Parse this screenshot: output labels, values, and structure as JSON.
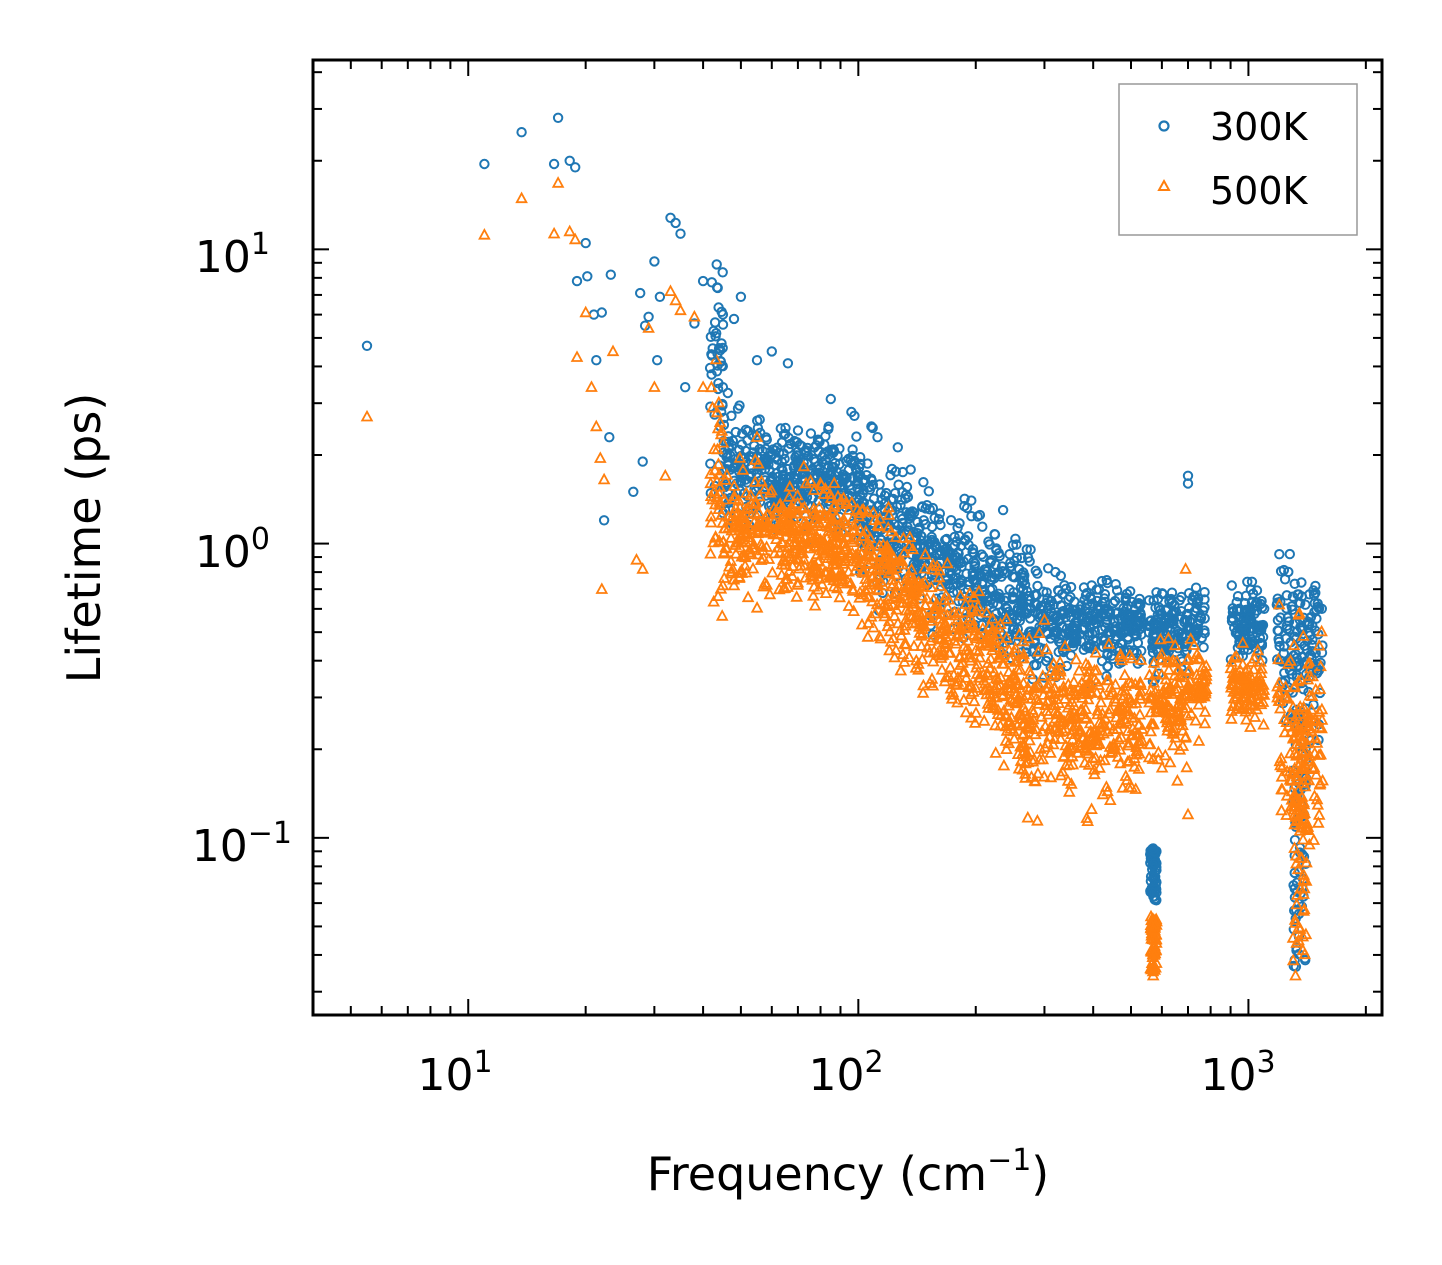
{
  "chart_data": {
    "type": "scatter",
    "title": "",
    "xlabel": "Frequency (cm",
    "xlabel_sup": "−1",
    "xlabel_tail": ")",
    "ylabel": "Lifetime (ps)",
    "xscale": "log",
    "yscale": "log",
    "xlim": [
      4,
      2200
    ],
    "ylim": [
      0.025,
      44
    ],
    "legend_position": "top-right",
    "x_ticks": [
      {
        "value": 10,
        "base": "10",
        "exp": "1"
      },
      {
        "value": 100,
        "base": "10",
        "exp": "2"
      },
      {
        "value": 1000,
        "base": "10",
        "exp": "3"
      }
    ],
    "y_ticks": [
      {
        "value": 0.1,
        "base": "10",
        "exp": "−1"
      },
      {
        "value": 1,
        "base": "10",
        "exp": "0"
      },
      {
        "value": 10,
        "base": "10",
        "exp": "1"
      }
    ],
    "series": [
      {
        "name": "300K",
        "marker": "circle",
        "color": "#1f77b4",
        "sample_points": [
          [
            5.5,
            4.7
          ],
          [
            11,
            19.5
          ],
          [
            13.7,
            25
          ],
          [
            16.6,
            19.5
          ],
          [
            17,
            28
          ],
          [
            18.2,
            20
          ],
          [
            18.8,
            19
          ],
          [
            19,
            7.8
          ],
          [
            20,
            10.5
          ],
          [
            20.2,
            8.1
          ],
          [
            21,
            6
          ],
          [
            21.3,
            4.2
          ],
          [
            22,
            6.1
          ],
          [
            22.3,
            1.2
          ],
          [
            23,
            2.3
          ],
          [
            23.2,
            8.2
          ],
          [
            26.5,
            1.5
          ],
          [
            27.6,
            7.1
          ],
          [
            28,
            1.9
          ],
          [
            28.4,
            5.5
          ],
          [
            29,
            5.9
          ],
          [
            30,
            9.1
          ],
          [
            30.5,
            4.2
          ],
          [
            31,
            6.9
          ],
          [
            33,
            12.8
          ],
          [
            34,
            12.3
          ],
          [
            35,
            11.3
          ],
          [
            36,
            3.4
          ],
          [
            38,
            5.6
          ],
          [
            40,
            7.8
          ],
          [
            42,
            4.4
          ],
          [
            48,
            5.8
          ],
          [
            50,
            6.9
          ],
          [
            55,
            4.2
          ],
          [
            60,
            4.5
          ],
          [
            66,
            4.1
          ],
          [
            85,
            3.1
          ],
          [
            96,
            2.8
          ],
          [
            108,
            2.5
          ],
          [
            112,
            2.3
          ],
          [
            130,
            1.75
          ],
          [
            150,
            1.35
          ],
          [
            205,
            1.25
          ],
          [
            235,
            1.3
          ],
          [
            275,
            0.87
          ],
          [
            320,
            0.8
          ],
          [
            570,
            0.092
          ],
          [
            575,
            0.082
          ],
          [
            700,
            1.7
          ],
          [
            700,
            1.6
          ],
          [
            1200,
            0.92
          ],
          [
            1300,
            0.66
          ],
          [
            1400,
            0.62
          ],
          [
            1500,
            0.37
          ]
        ]
      },
      {
        "name": "500K",
        "marker": "triangle",
        "color": "#ff7f0e",
        "sample_points": [
          [
            5.5,
            2.7
          ],
          [
            11,
            11.2
          ],
          [
            13.7,
            14.9
          ],
          [
            16.6,
            11.3
          ],
          [
            17,
            16.8
          ],
          [
            18.2,
            11.5
          ],
          [
            18.8,
            10.8
          ],
          [
            19,
            4.3
          ],
          [
            20,
            6.1
          ],
          [
            20.7,
            3.4
          ],
          [
            21.3,
            2.5
          ],
          [
            21.8,
            1.95
          ],
          [
            22,
            0.7
          ],
          [
            22.3,
            1.65
          ],
          [
            23.5,
            4.5
          ],
          [
            27,
            0.88
          ],
          [
            28,
            0.82
          ],
          [
            29,
            5.4
          ],
          [
            30,
            3.4
          ],
          [
            32,
            1.7
          ],
          [
            33,
            7.2
          ],
          [
            34,
            6.7
          ],
          [
            35,
            6.2
          ],
          [
            38,
            5.9
          ],
          [
            40,
            3.4
          ],
          [
            45,
            2.2
          ],
          [
            48,
            0.72
          ],
          [
            55,
            2.3
          ],
          [
            80,
            1.6
          ],
          [
            110,
            1.2
          ],
          [
            130,
            0.42
          ],
          [
            180,
            0.35
          ],
          [
            250,
            0.23
          ],
          [
            300,
            0.55
          ],
          [
            570,
            0.034
          ],
          [
            575,
            0.05
          ],
          [
            690,
            0.82
          ],
          [
            700,
            0.12
          ],
          [
            1200,
            0.62
          ],
          [
            1320,
            0.034
          ],
          [
            1350,
            0.58
          ],
          [
            1500,
            0.21
          ]
        ]
      }
    ]
  }
}
